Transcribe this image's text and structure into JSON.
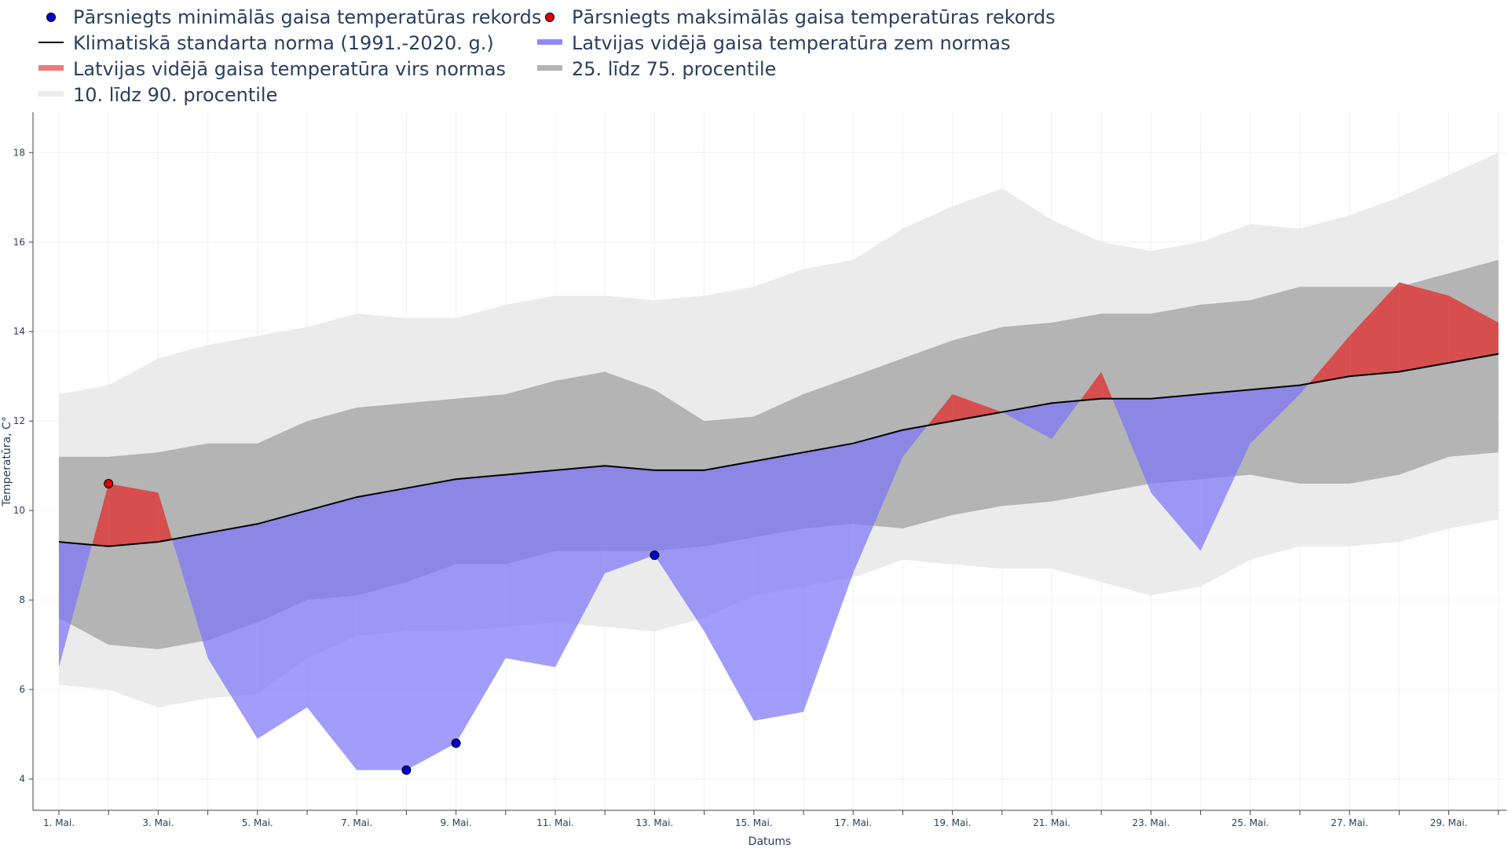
{
  "legend": {
    "items": [
      {
        "label": "Pārsniegts minimālās gaisa temperatūras rekords",
        "symbol": "dot",
        "color": "#0000cc"
      },
      {
        "label": "Pārsniegts maksimālās gaisa temperatūras rekords",
        "symbol": "dot",
        "color": "#dd0000"
      },
      {
        "label": "Klimatiskā standarta norma (1991.-2020. g.)",
        "symbol": "line",
        "color": "#000000"
      },
      {
        "label": "Latvijas vidējā gaisa temperatūra zem normas",
        "symbol": "band",
        "color": "#8f8afc"
      },
      {
        "label": "Latvijas vidējā gaisa temperatūra virs normas",
        "symbol": "band",
        "color": "#f07878"
      },
      {
        "label": "25. līdz 75. procentile",
        "symbol": "band",
        "color": "#b4b4b4"
      },
      {
        "label": "10. līdz 90. procentile",
        "symbol": "band",
        "color": "#ebebeb"
      }
    ]
  },
  "chart_data": {
    "type": "area",
    "xlabel": "Datums",
    "ylabel": "Temperatūra, C°",
    "ylim": [
      3.3,
      18.9
    ],
    "yticks": [
      4,
      6,
      8,
      10,
      12,
      14,
      16,
      18
    ],
    "grid": true,
    "legend_position": "top",
    "x": [
      "1. Mai.",
      "2. Mai.",
      "3. Mai.",
      "4. Mai.",
      "5. Mai.",
      "6. Mai.",
      "7. Mai.",
      "8. Mai.",
      "9. Mai.",
      "10. Mai.",
      "11. Mai.",
      "12. Mai.",
      "13. Mai.",
      "14. Mai.",
      "15. Mai.",
      "16. Mai.",
      "17. Mai.",
      "18. Mai.",
      "19. Mai.",
      "20. Mai.",
      "21. Mai.",
      "22. Mai.",
      "23. Mai.",
      "24. Mai.",
      "25. Mai.",
      "26. Mai.",
      "27. Mai.",
      "28. Mai.",
      "29. Mai.",
      "30. Mai."
    ],
    "x_tick_labels": [
      "1. Mai.",
      "",
      "3. Mai.",
      "",
      "5. Mai.",
      "",
      "7. Mai.",
      "",
      "9. Mai.",
      "",
      "11. Mai.",
      "",
      "13. Mai.",
      "",
      "15. Mai.",
      "",
      "17. Mai.",
      "",
      "19. Mai.",
      "",
      "21. Mai.",
      "",
      "23. Mai.",
      "",
      "25. Mai.",
      "",
      "27. Mai.",
      "",
      "29. Mai.",
      ""
    ],
    "series": [
      {
        "name": "10. līdz 90. procentile",
        "type": "band",
        "color": "#ebebeb",
        "lower": [
          6.1,
          6.0,
          5.6,
          5.8,
          5.9,
          6.7,
          7.2,
          7.3,
          7.3,
          7.4,
          7.5,
          7.4,
          7.3,
          7.6,
          8.1,
          8.3,
          8.5,
          8.9,
          8.8,
          8.7,
          8.7,
          8.4,
          8.1,
          8.3,
          8.9,
          9.2,
          9.2,
          9.3,
          9.6,
          9.8
        ],
        "upper": [
          12.6,
          12.8,
          13.4,
          13.7,
          13.9,
          14.1,
          14.4,
          14.3,
          14.3,
          14.6,
          14.8,
          14.8,
          14.7,
          14.8,
          15.0,
          15.4,
          15.6,
          16.3,
          16.8,
          17.2,
          16.5,
          16.0,
          15.8,
          16.0,
          16.4,
          16.3,
          16.6,
          17.0,
          17.5,
          18.0
        ]
      },
      {
        "name": "25. līdz 75. procentile",
        "type": "band",
        "color": "#b4b4b4",
        "lower": [
          7.6,
          7.0,
          6.9,
          7.1,
          7.5,
          8.0,
          8.1,
          8.4,
          8.8,
          8.8,
          9.1,
          9.1,
          9.1,
          9.2,
          9.4,
          9.6,
          9.7,
          9.6,
          9.9,
          10.1,
          10.2,
          10.4,
          10.6,
          10.7,
          10.8,
          10.6,
          10.6,
          10.8,
          11.2,
          11.3
        ],
        "upper": [
          11.2,
          11.2,
          11.3,
          11.5,
          11.5,
          12.0,
          12.3,
          12.4,
          12.5,
          12.6,
          12.9,
          13.1,
          12.7,
          12.0,
          12.1,
          12.6,
          13.0,
          13.4,
          13.8,
          14.1,
          14.2,
          14.4,
          14.4,
          14.6,
          14.7,
          15.0,
          15.0,
          15.0,
          15.3,
          15.6
        ]
      },
      {
        "name": "Klimatiskā standarta norma (1991.-2020. g.)",
        "type": "line",
        "color": "#000000",
        "values": [
          9.3,
          9.2,
          9.3,
          9.5,
          9.7,
          10.0,
          10.3,
          10.5,
          10.7,
          10.8,
          10.9,
          11.0,
          10.9,
          10.9,
          11.1,
          11.3,
          11.5,
          11.8,
          12.0,
          12.2,
          12.4,
          12.5,
          12.5,
          12.6,
          12.7,
          12.8,
          13.0,
          13.1,
          13.3,
          13.5
        ]
      },
      {
        "name": "Latvijas vidējā gaisa temperatūra",
        "type": "fill-to-norm",
        "below_color": "#7b72fa",
        "above_color": "#dc3c3c",
        "values": [
          6.5,
          10.6,
          10.4,
          6.7,
          4.9,
          5.6,
          4.2,
          4.2,
          4.8,
          6.7,
          6.5,
          8.6,
          9.0,
          7.3,
          5.3,
          5.5,
          8.6,
          11.2,
          12.6,
          12.2,
          11.6,
          13.1,
          10.4,
          9.1,
          11.5,
          12.6,
          13.9,
          15.1,
          14.8,
          14.2
        ]
      },
      {
        "name": "Pārsniegts minimālās gaisa temperatūras rekords",
        "type": "markers",
        "color": "#0000cc",
        "points": [
          {
            "x": "8. Mai.",
            "y": 4.2
          },
          {
            "x": "9. Mai.",
            "y": 4.8
          },
          {
            "x": "13. Mai.",
            "y": 9.0
          }
        ]
      },
      {
        "name": "Pārsniegts maksimālās gaisa temperatūras rekords",
        "type": "markers",
        "color": "#dd0000",
        "points": [
          {
            "x": "2. Mai.",
            "y": 10.6
          }
        ]
      }
    ]
  }
}
